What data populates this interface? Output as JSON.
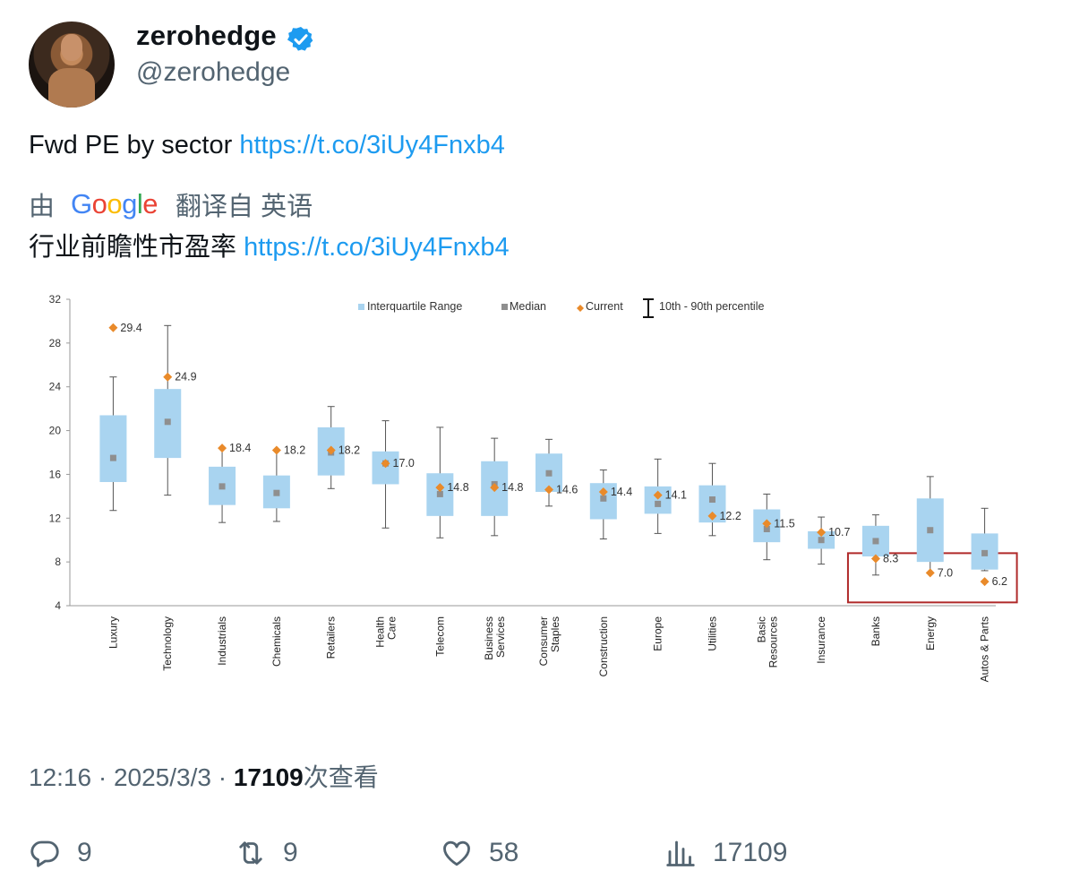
{
  "user": {
    "display_name": "zerohedge",
    "handle": "@zerohedge",
    "verified_color": "#1d9bf0"
  },
  "tweet": {
    "text": "Fwd PE by sector",
    "link": "https://t.co/3iUy4Fnxb4"
  },
  "translation": {
    "prefix": "由",
    "provider": "Google",
    "suffix": "翻译自 英语",
    "text": "行业前瞻性市盈率",
    "link": "https://t.co/3iUy4Fnxb4"
  },
  "chart_data": {
    "type": "box",
    "legend": [
      "Interquartile Range",
      "Median",
      "Current",
      "10th - 90th percentile"
    ],
    "ylim": [
      4,
      32
    ],
    "yticks": [
      4,
      8,
      12,
      16,
      20,
      24,
      28,
      32
    ],
    "categories": [
      "Luxury",
      "Technology",
      "Industrials",
      "Chemicals",
      "Retailers",
      "Health Care",
      "Telecom",
      "Business Services",
      "Consumer Staples",
      "Construction",
      "Europe",
      "Utilities",
      "Basic Resources",
      "Insurance",
      "Banks",
      "Energy",
      "Autos & Parts"
    ],
    "p10": [
      12.7,
      14.1,
      11.6,
      11.7,
      14.7,
      11.1,
      10.2,
      10.4,
      13.1,
      10.1,
      10.6,
      10.4,
      8.2,
      7.8,
      6.8,
      7.0,
      7.2
    ],
    "q1": [
      15.3,
      17.5,
      13.2,
      12.9,
      15.9,
      15.1,
      12.2,
      12.2,
      14.4,
      11.9,
      12.4,
      11.6,
      9.8,
      9.2,
      8.5,
      8.0,
      7.3
    ],
    "median": [
      17.5,
      20.8,
      14.9,
      14.3,
      18.0,
      17.0,
      14.2,
      15.1,
      16.1,
      13.8,
      13.3,
      13.7,
      11.0,
      10.0,
      9.9,
      10.9,
      8.8
    ],
    "q3": [
      21.4,
      23.8,
      16.7,
      15.9,
      20.3,
      18.1,
      16.1,
      17.2,
      17.9,
      15.2,
      14.9,
      15.0,
      12.8,
      10.8,
      11.3,
      13.8,
      10.6
    ],
    "p90": [
      24.9,
      29.6,
      18.4,
      18.2,
      22.2,
      20.9,
      20.3,
      19.3,
      19.2,
      16.4,
      17.4,
      17.0,
      14.2,
      12.1,
      12.3,
      15.8,
      12.9
    ],
    "current": [
      29.4,
      24.9,
      18.4,
      18.2,
      18.2,
      17.0,
      14.8,
      14.8,
      14.6,
      14.4,
      14.1,
      12.2,
      11.5,
      10.7,
      8.3,
      7.0,
      6.2
    ],
    "current_labels": [
      "29.4",
      "24.9",
      "18.4",
      "18.2",
      "18.2",
      "17.0",
      "14.8",
      "14.8",
      "14.6",
      "14.4",
      "14.1",
      "12.2",
      "11.5",
      "10.7",
      "8.3",
      "7.0",
      "6.2"
    ],
    "colors": {
      "box": "#a9d4f0",
      "median": "#8f8f8f",
      "current": "#e98a2a",
      "highlight": "#b02a2a"
    }
  },
  "meta": {
    "time": "12:16",
    "date": "2025/3/3",
    "views": "17109",
    "views_label": "次查看"
  },
  "actions": {
    "replies": "9",
    "retweets": "9",
    "likes": "58",
    "views": "17109"
  }
}
